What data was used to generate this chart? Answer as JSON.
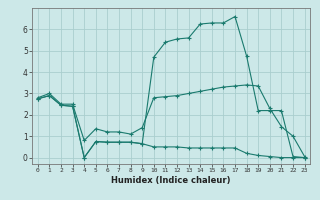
{
  "xlabel": "Humidex (Indice chaleur)",
  "bg_color": "#cce8e8",
  "grid_color": "#aacece",
  "line_color": "#1a7a6e",
  "xlim": [
    -0.5,
    23.5
  ],
  "ylim": [
    -0.3,
    7.0
  ],
  "yticks": [
    0,
    1,
    2,
    3,
    4,
    5,
    6
  ],
  "xticks": [
    0,
    1,
    2,
    3,
    4,
    5,
    6,
    7,
    8,
    9,
    10,
    11,
    12,
    13,
    14,
    15,
    16,
    17,
    18,
    19,
    20,
    21,
    22,
    23
  ],
  "line1_x": [
    0,
    1,
    2,
    3,
    4,
    5,
    6,
    7,
    8,
    9,
    10,
    11,
    12,
    13,
    14,
    15,
    16,
    17,
    18,
    19,
    20,
    21,
    22,
    23
  ],
  "line1_y": [
    2.8,
    3.0,
    2.5,
    2.5,
    0.8,
    1.35,
    1.2,
    1.2,
    1.1,
    1.4,
    2.8,
    2.85,
    2.9,
    3.0,
    3.1,
    3.2,
    3.3,
    3.35,
    3.4,
    3.35,
    2.3,
    1.45,
    1.0,
    0.05
  ],
  "line2_x": [
    0,
    1,
    2,
    3,
    4,
    5,
    6,
    7,
    8,
    9,
    10,
    11,
    12,
    13,
    14,
    15,
    16,
    17,
    18,
    19,
    20,
    21,
    22,
    23
  ],
  "line2_y": [
    2.75,
    2.9,
    2.45,
    2.4,
    0.0,
    0.75,
    0.72,
    0.72,
    0.72,
    0.65,
    0.5,
    0.5,
    0.5,
    0.45,
    0.45,
    0.45,
    0.45,
    0.45,
    0.2,
    0.1,
    0.05,
    0.0,
    0.0,
    0.0
  ],
  "line3_x": [
    0,
    1,
    2,
    3,
    4,
    5,
    6,
    7,
    8,
    9,
    10,
    11,
    12,
    13,
    14,
    15,
    16,
    17,
    18,
    19,
    20,
    21,
    22,
    23
  ],
  "line3_y": [
    2.75,
    2.9,
    2.45,
    2.4,
    0.0,
    0.75,
    0.72,
    0.72,
    0.72,
    0.65,
    4.7,
    5.4,
    5.55,
    5.6,
    6.25,
    6.3,
    6.3,
    6.6,
    4.75,
    2.2,
    2.2,
    2.2,
    0.05,
    0.0
  ]
}
